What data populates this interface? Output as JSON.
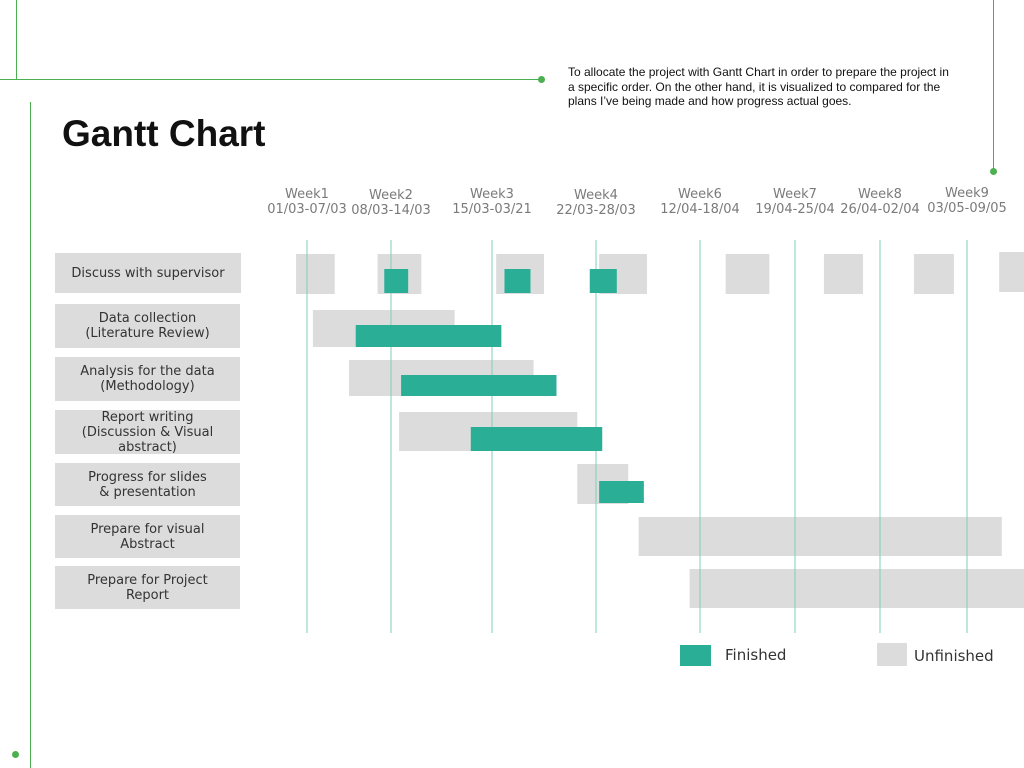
{
  "title": "Gantt Chart",
  "description": "To allocate the project with Gantt Chart in order to prepare the project in a specific order. On the other hand, it is visualized to compared for the plans I’ve being made and how progress actual goes.",
  "colors": {
    "finished": "#2aae96",
    "unfinished": "#dcdcdc",
    "week_line": "#7ccfbd",
    "accent": "#4caf50"
  },
  "legend": {
    "finished_label": "Finished",
    "unfinished_label": "Unfinished"
  },
  "chart_data": {
    "type": "gantt",
    "weeks": [
      {
        "name": "Week1",
        "dates": "01/03-07/03"
      },
      {
        "name": "Week2",
        "dates": "08/03-14/03"
      },
      {
        "name": "Week3",
        "dates": "15/03-03/21"
      },
      {
        "name": "Week4",
        "dates": "22/03-28/03"
      },
      {
        "name": "Week6",
        "dates": "12/04-18/04"
      },
      {
        "name": "Week7",
        "dates": "19/04-25/04"
      },
      {
        "name": "Week8",
        "dates": "26/04-02/04"
      },
      {
        "name": "Week9",
        "dates": "03/05-09/05"
      }
    ],
    "tasks": [
      {
        "name": "Discuss with supervisor",
        "unfinished": [
          [
            0.87,
            1.33
          ],
          [
            1.84,
            2.3
          ],
          [
            3.04,
            3.5
          ],
          [
            4.03,
            4.49
          ],
          [
            5.27,
            5.73
          ],
          [
            6.34,
            6.8
          ],
          [
            7.39,
            7.85
          ],
          [
            8.37,
            8.83
          ]
        ],
        "finished": [
          [
            1.92,
            2.17
          ],
          [
            3.12,
            3.37
          ],
          [
            3.94,
            4.2
          ]
        ]
      },
      {
        "name": "Data collection\n(Literature Review)",
        "unfinished": [
          [
            1.07,
            2.63
          ]
        ],
        "finished": [
          [
            1.58,
            3.09
          ]
        ]
      },
      {
        "name": "Analysis for the data\n(Methodology)",
        "unfinished": [
          [
            1.5,
            3.4
          ]
        ],
        "finished": [
          [
            2.1,
            3.62
          ]
        ]
      },
      {
        "name": "Report writing\n(Discussion & Visual abstract)",
        "unfinished": [
          [
            2.08,
            3.82
          ]
        ],
        "finished": [
          [
            2.79,
            4.06
          ]
        ]
      },
      {
        "name": "Progress for slides\n& presentation",
        "unfinished": [
          [
            3.82,
            4.31
          ]
        ],
        "finished": [
          [
            4.03,
            4.46
          ]
        ]
      },
      {
        "name": "Prepare for visual\nAbstract",
        "unfinished": [
          [
            4.41,
            8.4
          ]
        ],
        "finished": []
      },
      {
        "name": "Prepare for Project\nReport",
        "unfinished": [
          [
            4.9,
            9.33
          ]
        ],
        "finished": []
      }
    ]
  }
}
